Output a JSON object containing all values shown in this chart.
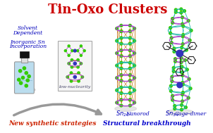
{
  "title": "Tin-Oxo Clusters",
  "title_color": "#cc0000",
  "title_fontsize": 13,
  "bg_color": "#ffffff",
  "left_label_color": "#0000bb",
  "box_label": "low-nuclearity",
  "bottom_left_text": "New synthetic strategies",
  "bottom_left_color": "#cc2200",
  "bottom_right_text": "Structural breakthrough",
  "bottom_right_color": "#0000cc",
  "cluster_label_color": "#0000bb",
  "green_dot_color": "#33cc00",
  "purple_color": "#aa44cc",
  "orange_color": "#cc8833",
  "cyan_color": "#22bbaa",
  "blue_center_color": "#3333bb",
  "flask_fill": "#bbddee",
  "flask_outline": "#999999",
  "arrow_color": "#999999",
  "shadow_color": "#cccccc"
}
